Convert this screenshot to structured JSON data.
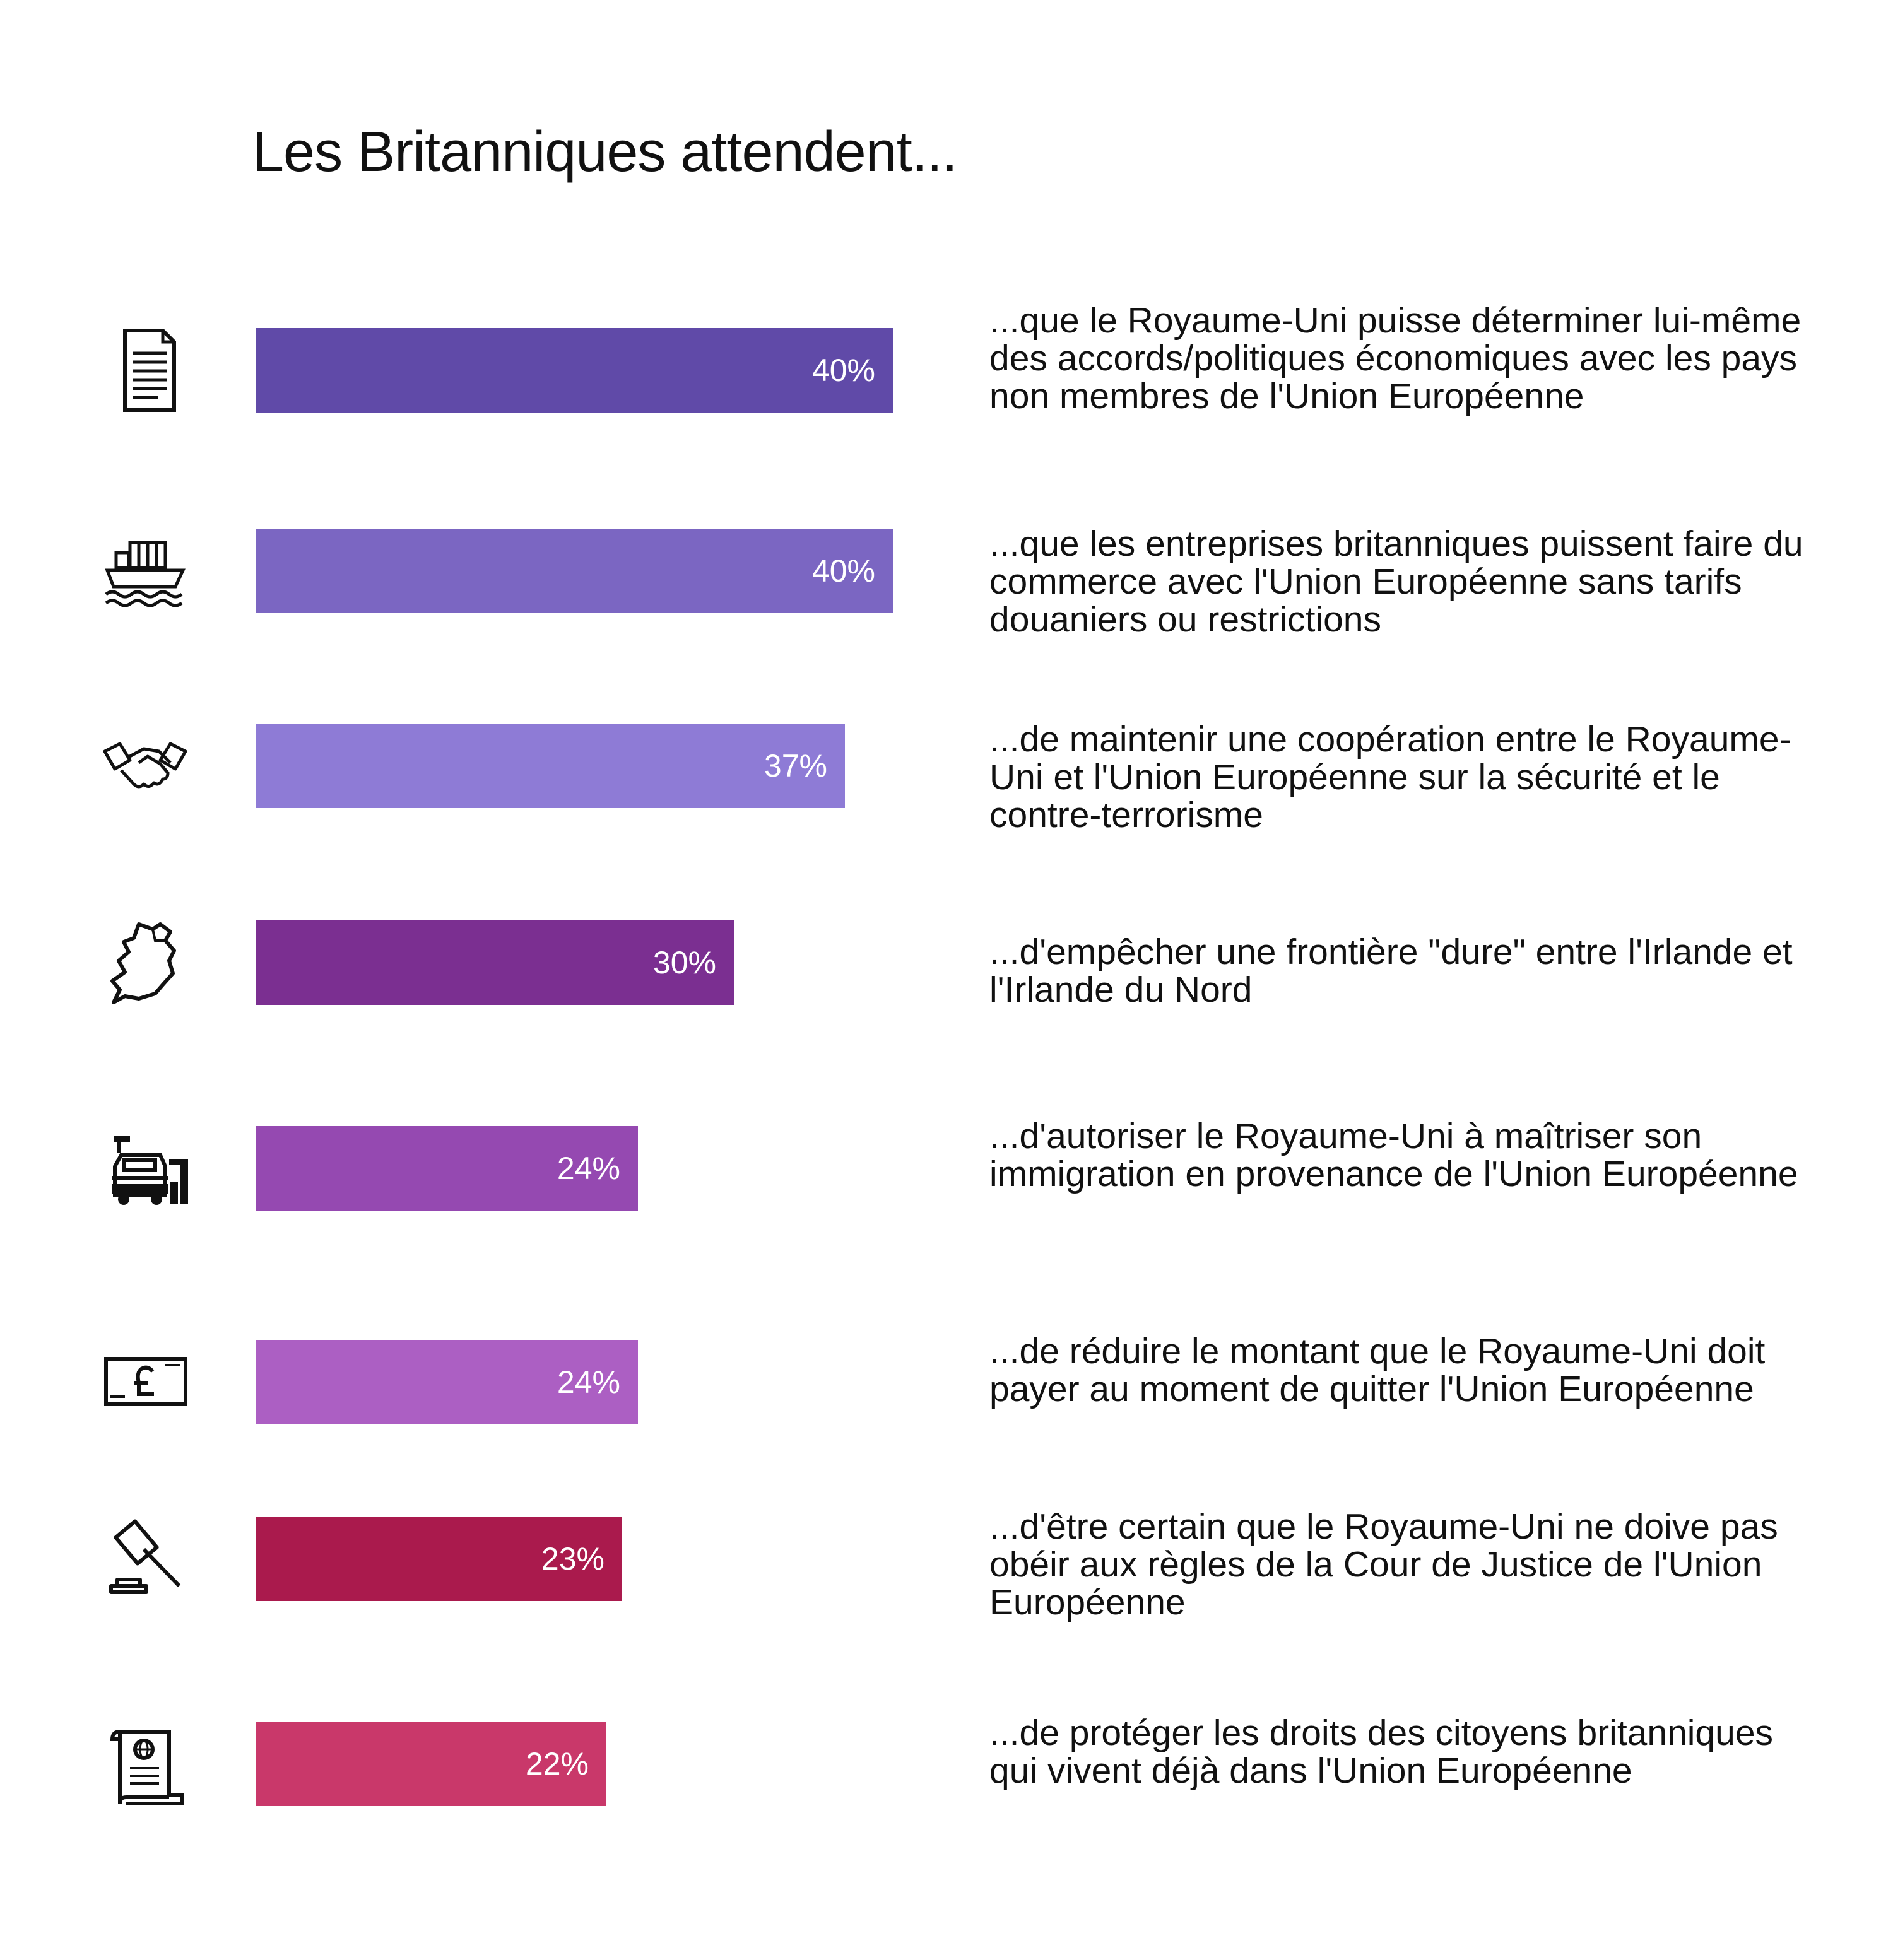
{
  "chart_data": {
    "type": "bar",
    "orientation": "horizontal",
    "title": "Les Britanniques attendent...",
    "xlim": [
      0,
      40
    ],
    "categories": [
      "...que le Royaume-Uni puisse déterminer lui-même des accords/politiques économiques avec les pays non membres de l'Union Européenne",
      "...que les entreprises britanniques puissent faire du commerce avec l'Union Européenne sans tarifs douaniers ou restrictions",
      "...de maintenir une coopération entre le Royaume-Uni et l'Union Européenne sur la sécurité et le contre-terrorisme",
      "...d'empêcher une frontière \"dure\" entre l'Irlande et l'Irlande du Nord",
      "...d'autoriser le Royaume-Uni à maîtriser son immigration en provenance de l'Union Européenne",
      "...de réduire le montant que le Royaume-Uni doit payer au moment de quitter l'Union Européenne",
      "...d'être certain que le Royaume-Uni ne doive pas obéir aux règles de la Cour de Justice de l'Union Européenne",
      "...de protéger les droits des citoyens britanniques qui vivent déjà dans l'Union Européenne"
    ],
    "values": [
      40,
      40,
      37,
      30,
      24,
      24,
      23,
      22
    ],
    "value_labels": [
      "40%",
      "40%",
      "37%",
      "30%",
      "24%",
      "24%",
      "23%",
      "22%"
    ],
    "bar_colors": [
      "#604aa8",
      "#7b66c2",
      "#8e7bd6",
      "#7b2f91",
      "#9549b1",
      "#ac5fc3",
      "#aa1a4d",
      "#c9386a"
    ],
    "icons": [
      "document-icon",
      "cargo-ship-icon",
      "handshake-icon",
      "ireland-map-icon",
      "border-control-icon",
      "pound-banknote-icon",
      "gavel-icon",
      "passport-scroll-icon"
    ]
  }
}
